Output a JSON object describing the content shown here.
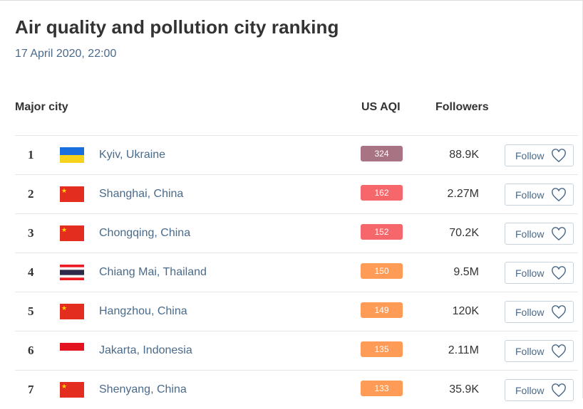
{
  "header": {
    "title": "Air quality and pollution city ranking",
    "subtitle": "17 April 2020, 22:00"
  },
  "columns": {
    "city": "Major city",
    "aqi": "US AQI",
    "followers": "Followers"
  },
  "follow_label": "Follow",
  "rows": [
    {
      "rank": "1",
      "city": "Kyiv, Ukraine",
      "aqi": "324",
      "aqi_color": "#a87383",
      "followers": "88.9K",
      "flag": "flag-ukraine-icon"
    },
    {
      "rank": "2",
      "city": "Shanghai, China",
      "aqi": "162",
      "aqi_color": "#f6676b",
      "followers": "2.27M",
      "flag": "flag-china-icon"
    },
    {
      "rank": "3",
      "city": "Chongqing, China",
      "aqi": "152",
      "aqi_color": "#f6676b",
      "followers": "70.2K",
      "flag": "flag-china-icon"
    },
    {
      "rank": "4",
      "city": "Chiang Mai, Thailand",
      "aqi": "150",
      "aqi_color": "#fe9b57",
      "followers": "9.5M",
      "flag": "flag-thailand-icon"
    },
    {
      "rank": "5",
      "city": "Hangzhou, China",
      "aqi": "149",
      "aqi_color": "#fe9b57",
      "followers": "120K",
      "flag": "flag-china-icon"
    },
    {
      "rank": "6",
      "city": "Jakarta, Indonesia",
      "aqi": "135",
      "aqi_color": "#fe9b57",
      "followers": "2.11M",
      "flag": "flag-indonesia-icon"
    },
    {
      "rank": "7",
      "city": "Shenyang, China",
      "aqi": "133",
      "aqi_color": "#fe9b57",
      "followers": "35.9K",
      "flag": "flag-china-icon"
    }
  ]
}
